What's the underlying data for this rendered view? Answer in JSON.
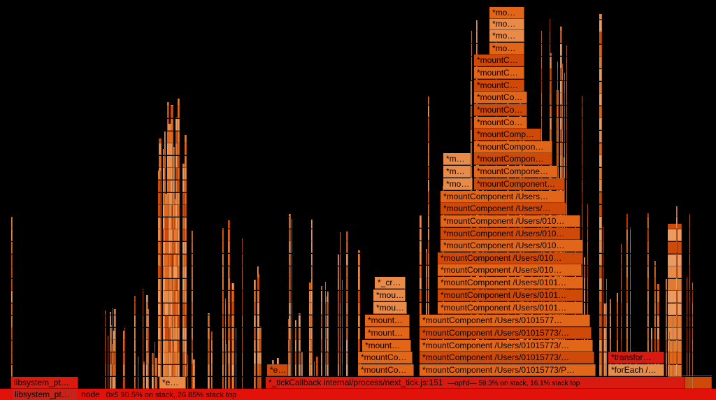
{
  "window": {
    "title": ""
  },
  "root": {
    "library": "libsystem_pt…",
    "node_name": "node",
    "node_stats": "0x5 90.5% on stack, 26.85% stack top"
  },
  "frames": {
    "libsystem_top": "libsystem_pt…",
    "tick_callback": "*_tickCallback internal/process/next_tick.js:151",
    "tick_stats": "—opt'd— 59.3% on stack, 16.1% stack top",
    "e_short": "*e…",
    "e_short2": "*e…",
    "for_each": "*forEach /…",
    "transform": "*transfor…",
    "cr": "*_cr…",
    "mo": "*m…",
    "mo2": "*mo…",
    "mou": "*mou…",
    "mount1": "*mount…",
    "mountC1": "*mountC…",
    "mountCo": "*mountCo…",
    "mountCo2": "*mountCo…",
    "mountComp": "*mountComp…",
    "mountCompon": "*mountCompon…",
    "mountCompone": "*mountCompone…",
    "mountComponent": "*mountComponent…",
    "mc_users": "*mountComponent /Users…",
    "mc_users2": "*mountComponent /Users/…",
    "mc_users010": "*mountComponent /Users/010…",
    "mc_users0101": "*mountComponent /Users/0101…",
    "mc_users01015773": "*mountComponent /Users/01015773/…",
    "mc_users01015773b": "*mountComponent /Users/01015773/…",
    "mc_users01015773P": "*mountComponent /Users/01015773/P…",
    "mc_users0101577": "*mountComponent /Users/0101577…"
  },
  "colors": {
    "root": "#e2110a",
    "dark_orange": "#cf4a09",
    "mid_orange": "#e2661a",
    "light_orange": "#e98b48",
    "peach": "#eb9a60",
    "red": "#d81a10"
  }
}
